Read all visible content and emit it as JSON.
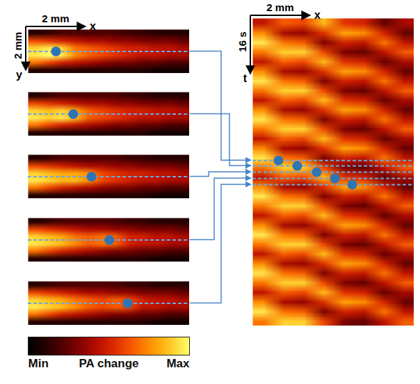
{
  "chart_data": [
    {
      "type": "heatmap",
      "xlim": [
        0,
        5.4
      ],
      "ylim": [
        0,
        2
      ],
      "tick_labels": false,
      "color": "#2e75b6",
      "marker": "circle",
      "line_style": "dashed",
      "scale_bars": [
        {
          "axis": "x",
          "length": 2,
          "label": "2 mm",
          "axis_label": "x"
        },
        {
          "axis": "y",
          "length": 2,
          "label": "2 mm",
          "axis_label": "y"
        }
      ],
      "points": [
        {
          "x": 0.93,
          "y": 1.0
        }
      ],
      "cells": [
        [
          0.1,
          0.15,
          0.2,
          0.2,
          0.2,
          0.2,
          0.2,
          0.15,
          0.15,
          0.1,
          0.1,
          0.1
        ],
        [
          0.6,
          0.55,
          0.5,
          0.45,
          0.4,
          0.4,
          0.35,
          0.35,
          0.3,
          0.3,
          0.3,
          0.25
        ],
        [
          0.9,
          0.95,
          0.9,
          0.7,
          0.65,
          0.6,
          0.55,
          0.5,
          0.5,
          0.45,
          0.45,
          0.4
        ],
        [
          0.95,
          1.0,
          0.95,
          0.75,
          0.65,
          0.6,
          0.55,
          0.5,
          0.45,
          0.45,
          0.4,
          0.4
        ],
        [
          0.7,
          0.6,
          0.5,
          0.45,
          0.4,
          0.35,
          0.3,
          0.3,
          0.25,
          0.25,
          0.2,
          0.2
        ],
        [
          0.1,
          0.1,
          0.1,
          0.1,
          0.1,
          0.1,
          0.1,
          0.1,
          0.1,
          0.05,
          0.05,
          0.05
        ]
      ]
    },
    {
      "type": "heatmap",
      "xlim": [
        0,
        5.4
      ],
      "ylim": [
        0,
        2
      ],
      "tick_labels": false,
      "color": "#2e75b6",
      "marker": "circle",
      "line_style": "dashed",
      "points": [
        {
          "x": 1.51,
          "y": 1.0
        }
      ],
      "cells": [
        [
          0.1,
          0.15,
          0.2,
          0.2,
          0.2,
          0.2,
          0.2,
          0.15,
          0.15,
          0.1,
          0.1,
          0.1
        ],
        [
          0.6,
          0.55,
          0.5,
          0.45,
          0.4,
          0.4,
          0.35,
          0.35,
          0.3,
          0.3,
          0.3,
          0.25
        ],
        [
          0.9,
          0.85,
          0.9,
          0.8,
          0.65,
          0.6,
          0.55,
          0.5,
          0.5,
          0.45,
          0.45,
          0.4
        ],
        [
          0.95,
          0.9,
          0.95,
          0.85,
          0.65,
          0.6,
          0.55,
          0.5,
          0.45,
          0.45,
          0.4,
          0.4
        ],
        [
          0.7,
          0.6,
          0.5,
          0.45,
          0.4,
          0.35,
          0.3,
          0.3,
          0.25,
          0.25,
          0.2,
          0.2
        ],
        [
          0.1,
          0.1,
          0.1,
          0.1,
          0.1,
          0.1,
          0.1,
          0.1,
          0.1,
          0.05,
          0.05,
          0.05
        ]
      ]
    },
    {
      "type": "heatmap",
      "xlim": [
        0,
        5.4
      ],
      "ylim": [
        0,
        2
      ],
      "tick_labels": false,
      "color": "#2e75b6",
      "marker": "circle",
      "line_style": "dashed",
      "points": [
        {
          "x": 2.12,
          "y": 1.0
        }
      ],
      "cells": [
        [
          0.1,
          0.15,
          0.2,
          0.2,
          0.2,
          0.2,
          0.2,
          0.15,
          0.15,
          0.1,
          0.1,
          0.1
        ],
        [
          0.6,
          0.55,
          0.5,
          0.45,
          0.4,
          0.4,
          0.35,
          0.35,
          0.3,
          0.3,
          0.3,
          0.25
        ],
        [
          0.9,
          0.85,
          0.8,
          0.8,
          0.75,
          0.6,
          0.55,
          0.5,
          0.5,
          0.45,
          0.45,
          0.4
        ],
        [
          0.95,
          0.9,
          0.85,
          0.85,
          0.75,
          0.6,
          0.55,
          0.5,
          0.45,
          0.45,
          0.4,
          0.4
        ],
        [
          0.7,
          0.6,
          0.5,
          0.45,
          0.4,
          0.35,
          0.3,
          0.3,
          0.25,
          0.25,
          0.2,
          0.2
        ],
        [
          0.1,
          0.1,
          0.1,
          0.1,
          0.1,
          0.1,
          0.1,
          0.1,
          0.1,
          0.05,
          0.05,
          0.05
        ]
      ]
    },
    {
      "type": "heatmap",
      "xlim": [
        0,
        5.4
      ],
      "ylim": [
        0,
        2
      ],
      "tick_labels": false,
      "color": "#2e75b6",
      "marker": "circle",
      "line_style": "dashed",
      "points": [
        {
          "x": 2.72,
          "y": 1.0
        }
      ],
      "cells": [
        [
          0.1,
          0.15,
          0.2,
          0.2,
          0.2,
          0.2,
          0.2,
          0.15,
          0.15,
          0.1,
          0.1,
          0.1
        ],
        [
          0.6,
          0.55,
          0.5,
          0.45,
          0.4,
          0.4,
          0.35,
          0.35,
          0.3,
          0.3,
          0.3,
          0.25
        ],
        [
          0.9,
          0.85,
          0.8,
          0.7,
          0.65,
          0.7,
          0.65,
          0.5,
          0.5,
          0.45,
          0.45,
          0.4
        ],
        [
          0.95,
          0.9,
          0.85,
          0.75,
          0.65,
          0.7,
          0.65,
          0.5,
          0.45,
          0.45,
          0.4,
          0.4
        ],
        [
          0.7,
          0.6,
          0.5,
          0.45,
          0.4,
          0.35,
          0.3,
          0.3,
          0.25,
          0.25,
          0.2,
          0.2
        ],
        [
          0.1,
          0.1,
          0.1,
          0.1,
          0.1,
          0.1,
          0.1,
          0.1,
          0.1,
          0.05,
          0.05,
          0.05
        ]
      ]
    },
    {
      "type": "heatmap",
      "xlim": [
        0,
        5.4
      ],
      "ylim": [
        0,
        2
      ],
      "tick_labels": false,
      "color": "#2e75b6",
      "marker": "circle",
      "line_style": "dashed",
      "points": [
        {
          "x": 3.33,
          "y": 1.0
        }
      ],
      "cells": [
        [
          0.1,
          0.15,
          0.2,
          0.2,
          0.2,
          0.2,
          0.2,
          0.15,
          0.15,
          0.1,
          0.1,
          0.1
        ],
        [
          0.6,
          0.55,
          0.5,
          0.45,
          0.4,
          0.4,
          0.35,
          0.35,
          0.3,
          0.3,
          0.3,
          0.25
        ],
        [
          0.9,
          0.85,
          0.8,
          0.7,
          0.65,
          0.6,
          0.65,
          0.6,
          0.5,
          0.45,
          0.45,
          0.4
        ],
        [
          0.95,
          0.9,
          0.85,
          0.75,
          0.65,
          0.6,
          0.65,
          0.6,
          0.45,
          0.45,
          0.4,
          0.4
        ],
        [
          0.7,
          0.6,
          0.5,
          0.45,
          0.4,
          0.35,
          0.3,
          0.3,
          0.25,
          0.25,
          0.2,
          0.2
        ],
        [
          0.1,
          0.1,
          0.1,
          0.1,
          0.1,
          0.1,
          0.1,
          0.1,
          0.1,
          0.05,
          0.05,
          0.05
        ]
      ]
    },
    {
      "type": "heatmap",
      "xlim": [
        0,
        5.4
      ],
      "ylim": [
        0,
        84
      ],
      "tick_labels": false,
      "color": "#2e75b6",
      "marker": "circle",
      "line_style": "dashed",
      "scale_bars": [
        {
          "axis": "x",
          "length": 2,
          "label": "2 mm",
          "axis_label": "x"
        },
        {
          "axis": "y",
          "length": 16,
          "label": "16 s",
          "axis_label": "t"
        }
      ],
      "points": [
        {
          "x": 0.86,
          "y": 38.8
        },
        {
          "x": 1.49,
          "y": 40.3
        },
        {
          "x": 2.14,
          "y": 42.0
        },
        {
          "x": 2.75,
          "y": 43.7
        },
        {
          "x": 3.33,
          "y": 45.4
        }
      ],
      "cells": [
        [
          0.45,
          0.65,
          0.6,
          0.85,
          0.55,
          0.5,
          0.25,
          0.4
        ],
        [
          0.75,
          0.4,
          0.35,
          0.55,
          0.8,
          0.75,
          0.5,
          0.25
        ],
        [
          0.95,
          0.7,
          0.65,
          0.3,
          0.5,
          0.45,
          0.7,
          0.45
        ],
        [
          0.7,
          0.9,
          0.9,
          0.6,
          0.3,
          0.25,
          0.45,
          0.65
        ],
        [
          0.45,
          0.65,
          0.6,
          0.85,
          0.55,
          0.5,
          0.25,
          0.4
        ],
        [
          0.75,
          0.4,
          0.35,
          0.55,
          0.8,
          0.75,
          0.5,
          0.25
        ],
        [
          0.95,
          0.7,
          0.65,
          0.3,
          0.5,
          0.45,
          0.7,
          0.45
        ],
        [
          0.7,
          0.9,
          0.9,
          0.6,
          0.3,
          0.25,
          0.45,
          0.65
        ],
        [
          0.45,
          0.65,
          0.6,
          0.85,
          0.55,
          0.5,
          0.25,
          0.4
        ],
        [
          0.75,
          0.4,
          0.35,
          0.55,
          0.8,
          0.75,
          0.5,
          0.25
        ],
        [
          0.95,
          0.7,
          0.65,
          0.3,
          0.5,
          0.45,
          0.7,
          0.45
        ],
        [
          0.7,
          0.9,
          0.9,
          0.6,
          0.3,
          0.25,
          0.45,
          0.65
        ],
        [
          0.45,
          0.65,
          0.6,
          0.85,
          0.55,
          0.5,
          0.25,
          0.4
        ],
        [
          0.75,
          0.4,
          0.35,
          0.55,
          0.8,
          0.75,
          0.5,
          0.25
        ],
        [
          0.95,
          0.7,
          0.65,
          0.3,
          0.5,
          0.45,
          0.7,
          0.45
        ],
        [
          0.7,
          0.9,
          0.9,
          0.6,
          0.3,
          0.25,
          0.45,
          0.65
        ],
        [
          0.45,
          0.65,
          0.6,
          0.85,
          0.55,
          0.5,
          0.25,
          0.4
        ],
        [
          0.75,
          0.4,
          0.35,
          0.55,
          0.8,
          0.75,
          0.5,
          0.25
        ],
        [
          0.95,
          0.7,
          0.65,
          0.3,
          0.5,
          0.45,
          0.7,
          0.45
        ],
        [
          0.7,
          0.9,
          0.9,
          0.6,
          0.3,
          0.25,
          0.45,
          0.65
        ],
        [
          0.45,
          0.65,
          0.6,
          0.85,
          0.55,
          0.5,
          0.25,
          0.4
        ],
        [
          0.75,
          0.4,
          0.35,
          0.55,
          0.8,
          0.75,
          0.5,
          0.25
        ],
        [
          0.95,
          0.7,
          0.65,
          0.3,
          0.5,
          0.45,
          0.7,
          0.45
        ],
        [
          0.7,
          0.9,
          0.9,
          0.6,
          0.3,
          0.25,
          0.45,
          0.65
        ],
        [
          0.45,
          0.65,
          0.6,
          0.85,
          0.55,
          0.5,
          0.25,
          0.4
        ],
        [
          0.75,
          0.4,
          0.35,
          0.55,
          0.8,
          0.75,
          0.5,
          0.25
        ],
        [
          0.95,
          0.7,
          0.65,
          0.3,
          0.5,
          0.45,
          0.7,
          0.45
        ],
        [
          0.7,
          0.9,
          0.9,
          0.6,
          0.3,
          0.25,
          0.45,
          0.65
        ],
        [
          0.45,
          0.65,
          0.6,
          0.85,
          0.55,
          0.5,
          0.25,
          0.4
        ],
        [
          0.75,
          0.4,
          0.35,
          0.55,
          0.8,
          0.75,
          0.5,
          0.25
        ],
        [
          0.95,
          0.7,
          0.65,
          0.3,
          0.5,
          0.45,
          0.7,
          0.45
        ],
        [
          0.7,
          0.9,
          0.9,
          0.6,
          0.3,
          0.25,
          0.45,
          0.65
        ]
      ]
    }
  ],
  "colorbar": {
    "range": [
      0,
      1
    ],
    "ticks": [
      {
        "value": 0,
        "label": "Min"
      },
      {
        "value": 1,
        "label": "Max"
      }
    ],
    "label": "PA change"
  }
}
